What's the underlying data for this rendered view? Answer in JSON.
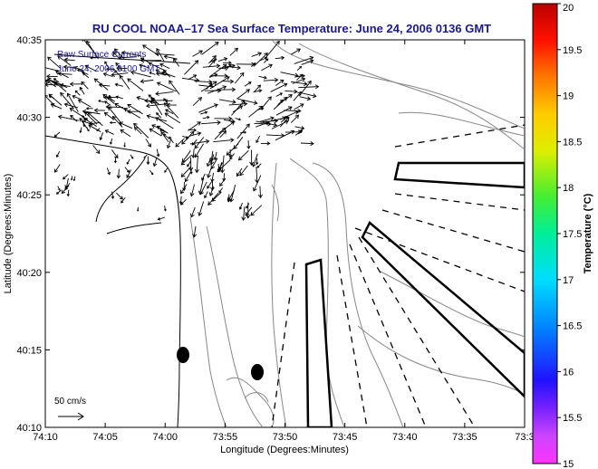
{
  "chart_data": {
    "type": "map",
    "title": "RU COOL  NOAA–17  Sea Surface Temperature:  June 24, 2006 0136 GMT",
    "xlabel": "Longitude (Degrees:Minutes)",
    "ylabel": "Latitude (Degrees:Minutes)",
    "x_tick_labels": [
      "74:10",
      "74:05",
      "74:00",
      "73:55",
      "73:50",
      "73:45",
      "73:40",
      "73:35",
      "73:3"
    ],
    "y_tick_labels": [
      "40:35",
      "40:30",
      "40:25",
      "40:20",
      "40:15",
      "40:10"
    ],
    "xlim_minutes_west": [
      10,
      30
    ],
    "ylim_minutes_north": [
      10,
      35
    ],
    "legend_lines": [
      "Raw Surface Currents",
      "June 24, 2006 0100 GMT"
    ],
    "scale_label": "50 cm/s",
    "colorbar": {
      "label": "Temperature (°C)",
      "ticks": [
        "20",
        "19.5",
        "19",
        "18.5",
        "18",
        "17.5",
        "17",
        "16.5",
        "16",
        "15.5",
        "15"
      ],
      "range": [
        15,
        20
      ]
    },
    "colors": {
      "title": "#1a1a8c",
      "arrows": "#000000",
      "contours": "#888888"
    }
  }
}
